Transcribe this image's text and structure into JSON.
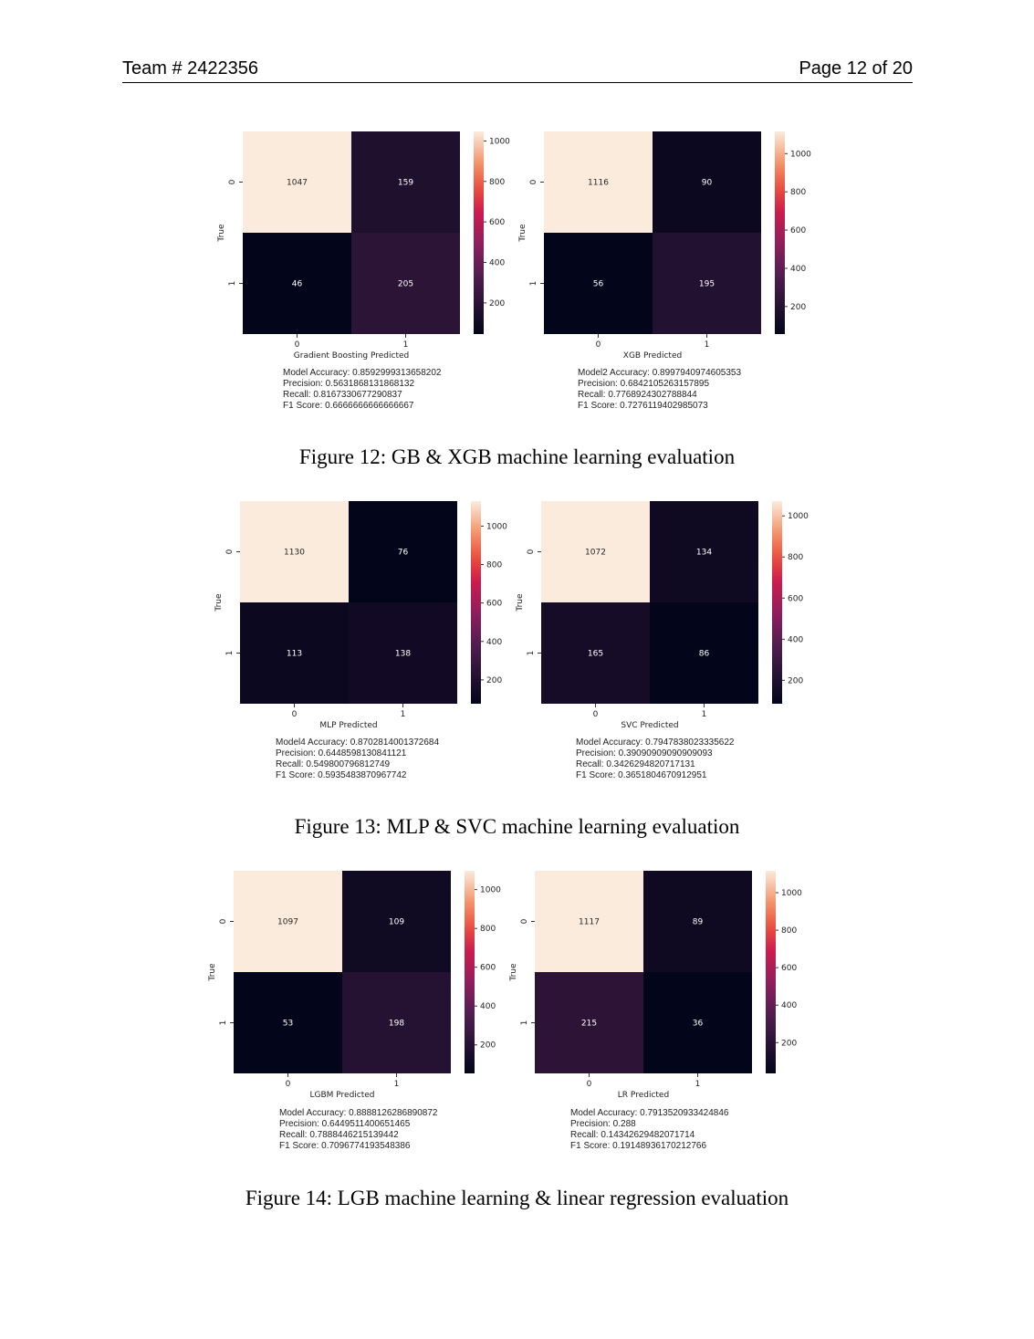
{
  "header": {
    "team": "Team # 2422356",
    "page": "Page 12 of 20"
  },
  "figures": [
    {
      "caption": "Figure 12: GB & XGB machine learning evaluation",
      "panels": [
        {
          "xlabel": "Gradient Boosting Predicted",
          "ylabel": "True",
          "matrix": [
            [
              1047,
              159
            ],
            [
              46,
              205
            ]
          ],
          "colorbar_ticks": [
            1000,
            800,
            600,
            400,
            200
          ],
          "metrics": [
            "Model Accuracy: 0.8592999313658202",
            "Precision: 0.5631868131868132",
            "Recall: 0.8167330677290837",
            "F1 Score: 0.6666666666666667"
          ]
        },
        {
          "xlabel": "XGB Predicted",
          "ylabel": "True",
          "matrix": [
            [
              1116,
              90
            ],
            [
              56,
              195
            ]
          ],
          "colorbar_ticks": [
            1000,
            800,
            600,
            400,
            200
          ],
          "metrics": [
            "Model2 Accuracy: 0.8997940974605353",
            "Precision: 0.6842105263157895",
            "Recall: 0.7768924302788844",
            "F1 Score: 0.7276119402985073"
          ]
        }
      ]
    },
    {
      "caption": "Figure 13: MLP & SVC machine learning evaluation",
      "panels": [
        {
          "xlabel": "MLP Predicted",
          "ylabel": "True",
          "matrix": [
            [
              1130,
              76
            ],
            [
              113,
              138
            ]
          ],
          "colorbar_ticks": [
            1000,
            800,
            600,
            400,
            200
          ],
          "metrics": [
            "Model4 Accuracy: 0.8702814001372684",
            "Precision: 0.6448598130841121",
            "Recall: 0.549800796812749",
            "F1 Score: 0.5935483870967742"
          ]
        },
        {
          "xlabel": "SVC Predicted",
          "ylabel": "True",
          "matrix": [
            [
              1072,
              134
            ],
            [
              165,
              86
            ]
          ],
          "colorbar_ticks": [
            1000,
            800,
            600,
            400,
            200
          ],
          "metrics": [
            "Model Accuracy: 0.7947838023335622",
            "Precision: 0.39090909090909093",
            "Recall: 0.3426294820717131",
            "F1 Score: 0.3651804670912951"
          ]
        }
      ]
    },
    {
      "caption": "Figure 14: LGB machine learning & linear regression evaluation",
      "panels": [
        {
          "xlabel": "LGBM Predicted",
          "ylabel": "True",
          "matrix": [
            [
              1097,
              109
            ],
            [
              53,
              198
            ]
          ],
          "colorbar_ticks": [
            1000,
            800,
            600,
            400,
            200
          ],
          "metrics": [
            "Model Accuracy: 0.8888126286890872",
            "Precision: 0.6449511400651465",
            "Recall: 0.7888446215139442",
            "F1 Score: 0.7096774193548386"
          ]
        },
        {
          "xlabel": "LR Predicted",
          "ylabel": "True",
          "matrix": [
            [
              1117,
              89
            ],
            [
              215,
              36
            ]
          ],
          "colorbar_ticks": [
            1000,
            800,
            600,
            400,
            200
          ],
          "metrics": [
            "Model Accuracy: 0.7913520933424846",
            "Precision: 0.288",
            "Recall: 0.14342629482071714",
            "F1 Score: 0.19148936170212766"
          ]
        }
      ]
    }
  ],
  "chart_data": [
    {
      "type": "heatmap",
      "xlabel": "Gradient Boosting Predicted",
      "ylabel": "True",
      "x": [
        "0",
        "1"
      ],
      "y": [
        "0",
        "1"
      ],
      "values": [
        [
          1047,
          159
        ],
        [
          46,
          205
        ]
      ]
    },
    {
      "type": "heatmap",
      "xlabel": "XGB Predicted",
      "ylabel": "True",
      "x": [
        "0",
        "1"
      ],
      "y": [
        "0",
        "1"
      ],
      "values": [
        [
          1116,
          90
        ],
        [
          56,
          195
        ]
      ]
    },
    {
      "type": "heatmap",
      "xlabel": "MLP Predicted",
      "ylabel": "True",
      "x": [
        "0",
        "1"
      ],
      "y": [
        "0",
        "1"
      ],
      "values": [
        [
          1130,
          76
        ],
        [
          113,
          138
        ]
      ]
    },
    {
      "type": "heatmap",
      "xlabel": "SVC Predicted",
      "ylabel": "True",
      "x": [
        "0",
        "1"
      ],
      "y": [
        "0",
        "1"
      ],
      "values": [
        [
          1072,
          134
        ],
        [
          165,
          86
        ]
      ]
    },
    {
      "type": "heatmap",
      "xlabel": "LGBM Predicted",
      "ylabel": "True",
      "x": [
        "0",
        "1"
      ],
      "y": [
        "0",
        "1"
      ],
      "values": [
        [
          1097,
          109
        ],
        [
          53,
          198
        ]
      ]
    },
    {
      "type": "heatmap",
      "xlabel": "LR Predicted",
      "ylabel": "True",
      "x": [
        "0",
        "1"
      ],
      "y": [
        "0",
        "1"
      ],
      "values": [
        [
          1117,
          89
        ],
        [
          215,
          36
        ]
      ]
    }
  ]
}
